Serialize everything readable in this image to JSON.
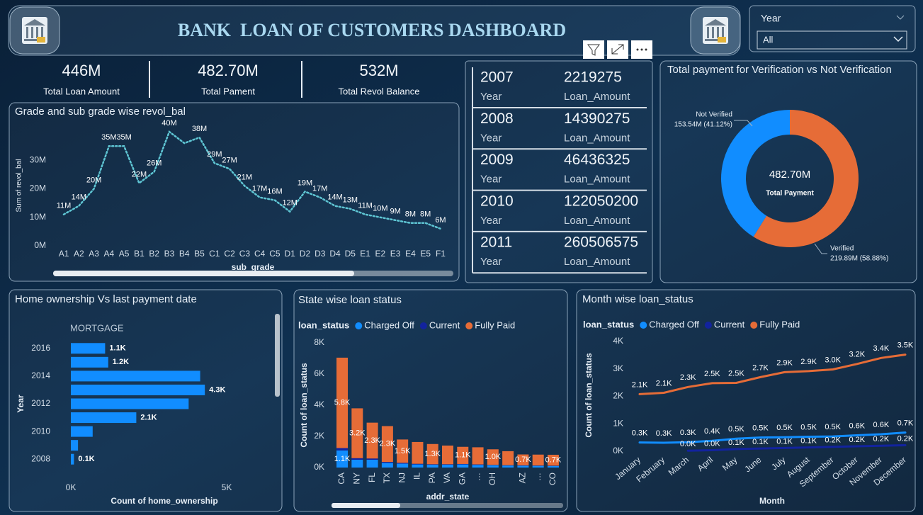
{
  "header": {
    "title": "BANK  LOAN OF CUSTOMERS DASHBOARD"
  },
  "slicer": {
    "label": "Year",
    "value": "All"
  },
  "kpis": [
    {
      "value": "446M",
      "label": "Total Loan Amount"
    },
    {
      "value": "482.70M",
      "label": "Total Pament"
    },
    {
      "value": "532M",
      "label": "Total Revol Balance"
    }
  ],
  "year_table": {
    "rows": [
      {
        "year": 2007,
        "year_label": "Year",
        "amount": 2219275,
        "amount_label": "Loan_Amount"
      },
      {
        "year": 2008,
        "year_label": "Year",
        "amount": 14390275,
        "amount_label": "Loan_Amount"
      },
      {
        "year": 2009,
        "year_label": "Year",
        "amount": 46436325,
        "amount_label": "Loan_Amount"
      },
      {
        "year": 2010,
        "year_label": "Year",
        "amount": 122050200,
        "amount_label": "Loan_Amount"
      },
      {
        "year": 2011,
        "year_label": "Year",
        "amount": 260506575,
        "amount_label": "Loan_Amount"
      }
    ]
  },
  "chart_data": [
    {
      "type": "line",
      "title": "Grade and sub grade wise revol_bal",
      "x_label": "sub_grade",
      "y_label": "Sum of revol_bal",
      "categories": [
        "A1",
        "A2",
        "A3",
        "A4",
        "A5",
        "B1",
        "B2",
        "B3",
        "B4",
        "B5",
        "C1",
        "C2",
        "C3",
        "C4",
        "C5",
        "D1",
        "D2",
        "D3",
        "D4",
        "D5",
        "E1",
        "E2",
        "E3",
        "E4",
        "E5",
        "F1"
      ],
      "values": [
        11000000,
        14000000,
        20000000,
        35000000,
        35000000,
        22000000,
        26000000,
        40000000,
        36000000,
        38000000,
        29000000,
        27000000,
        21000000,
        17000000,
        16000000,
        12000000,
        19000000,
        17000000,
        14000000,
        13000000,
        11000000,
        10000000,
        9000000,
        8000000,
        8000000,
        6000000
      ],
      "value_labels": [
        "11M",
        "14M",
        "20M",
        "35M",
        "35M",
        "22M",
        "26M",
        "40M",
        null,
        "38M",
        "29M",
        "27M",
        "21M",
        "17M",
        "16M",
        "12M",
        "19M",
        "17M",
        "14M",
        "13M",
        "11M",
        "10M",
        "9M",
        "8M",
        "8M",
        "6M"
      ],
      "color": "#5fc6d4",
      "line_style": "dotted",
      "ylim": [
        0,
        42000000
      ],
      "yticks": [
        {
          "value": 0,
          "label": "0M"
        },
        {
          "value": 10000000,
          "label": "10M"
        },
        {
          "value": 20000000,
          "label": "20M"
        },
        {
          "value": 30000000,
          "label": "30M"
        }
      ]
    },
    {
      "type": "hbar",
      "title": "Home ownership Vs last payment date",
      "subtitle": "MORTGAGE",
      "x_label": "Count of home_ownership",
      "y_label": "Year",
      "categories": [
        "2016",
        null,
        "2014",
        null,
        "2012",
        null,
        "2010",
        null,
        "2008"
      ],
      "values": [
        1100,
        1200,
        4150,
        4300,
        3780,
        2100,
        700,
        230,
        100
      ],
      "value_labels": [
        "1.1K",
        "1.2K",
        null,
        "4.3K",
        null,
        "2.1K",
        null,
        null,
        "0.1K"
      ],
      "color": "#118dff",
      "xlim": [
        0,
        6500
      ],
      "xticks": [
        {
          "value": 0,
          "label": "0K"
        },
        {
          "value": 5000,
          "label": "5K"
        }
      ]
    },
    {
      "type": "stacked_bar",
      "title": "State wise loan status",
      "legend_title": "loan_status",
      "x_label": "addr_state",
      "y_label": "Count of loan_status",
      "categories": [
        "CA",
        "NY",
        "FL",
        "TX",
        "NJ",
        "IL",
        "PA",
        "VA",
        "GA",
        "…",
        "OH",
        null,
        "AZ",
        "…",
        "CO"
      ],
      "series": [
        {
          "name": "Charged Off",
          "color": "#118dff",
          "values": [
            1100,
            500,
            500,
            300,
            250,
            200,
            180,
            180,
            200,
            170,
            150,
            130,
            120,
            110,
            100
          ],
          "value_labels": [
            "1.1K",
            null,
            null,
            null,
            null,
            null,
            null,
            null,
            null,
            null,
            null,
            null,
            null,
            null,
            null
          ]
        },
        {
          "name": "Current",
          "color": "#12239e",
          "values": [
            150,
            100,
            80,
            60,
            50,
            40,
            30,
            30,
            30,
            30,
            20,
            20,
            20,
            20,
            20
          ]
        },
        {
          "name": "Fully Paid",
          "color": "#e66c37",
          "values": [
            5800,
            3200,
            2300,
            2300,
            1500,
            1400,
            1300,
            1200,
            1100,
            1100,
            1000,
            900,
            700,
            700,
            700
          ],
          "value_labels": [
            "5.8K",
            "3.2K",
            "2.3K",
            "2.3K",
            "1.5K",
            null,
            "1.3K",
            null,
            "1.1K",
            null,
            "1.0K",
            null,
            "0.7K",
            null,
            "0.7K"
          ]
        }
      ],
      "ylim": [
        0,
        8000
      ],
      "yticks": [
        {
          "value": 0,
          "label": "0K"
        },
        {
          "value": 2000,
          "label": "2K"
        },
        {
          "value": 4000,
          "label": "4K"
        },
        {
          "value": 6000,
          "label": "6K"
        },
        {
          "value": 8000,
          "label": "8K"
        }
      ]
    },
    {
      "type": "line",
      "title": "Month wise loan_status",
      "legend_title": "loan_status",
      "x_label": "Month",
      "y_label": "Count of loan_status",
      "categories": [
        "January",
        "February",
        "March",
        "April",
        "May",
        "June",
        "July",
        "August",
        "September",
        "October",
        "November",
        "December"
      ],
      "series": [
        {
          "name": "Charged Off",
          "color": "#118dff",
          "values": [
            320,
            310,
            330,
            380,
            460,
            500,
            510,
            530,
            540,
            580,
            620,
            680
          ],
          "value_labels": [
            "0.3K",
            "0.3K",
            "0.3K",
            "0.4K",
            "0.5K",
            "0.5K",
            "0.5K",
            "0.5K",
            "0.5K",
            "0.6K",
            "0.6K",
            "0.7K"
          ]
        },
        {
          "name": "Current",
          "color": "#12239e",
          "values": [
            null,
            null,
            20,
            40,
            80,
            100,
            120,
            140,
            160,
            180,
            200,
            220
          ],
          "value_labels": [
            null,
            null,
            "0.0K",
            "0.0K",
            "0.1K",
            "0.1K",
            "0.1K",
            "0.1K",
            "0.2K",
            "0.2K",
            "0.2K",
            "0.2K"
          ]
        },
        {
          "name": "Fully Paid",
          "color": "#e66c37",
          "values": [
            2080,
            2130,
            2340,
            2480,
            2490,
            2700,
            2880,
            2920,
            2980,
            3180,
            3400,
            3520
          ],
          "value_labels": [
            "2.1K",
            "2.1K",
            "2.3K",
            "2.5K",
            "2.5K",
            "2.7K",
            "2.9K",
            "2.9K",
            "3.0K",
            "3.2K",
            "3.4K",
            "3.5K"
          ]
        }
      ],
      "ylim": [
        0,
        4000
      ],
      "yticks": [
        {
          "value": 0,
          "label": "0K"
        },
        {
          "value": 1000,
          "label": "1K"
        },
        {
          "value": 2000,
          "label": "2K"
        },
        {
          "value": 3000,
          "label": "3K"
        },
        {
          "value": 4000,
          "label": "4K"
        }
      ]
    },
    {
      "type": "pie",
      "title": "Total payment for Verification vs Not Verification",
      "center_value": "482.70M",
      "center_label": "Total Payment",
      "categories": [
        "Not Verified",
        "Verified"
      ],
      "values": [
        153540000,
        219890000
      ],
      "value_labels": [
        "153.54M (41.12%)",
        "219.89M (58.88%)"
      ],
      "colors": [
        "#118dff",
        "#e66c37"
      ]
    }
  ]
}
